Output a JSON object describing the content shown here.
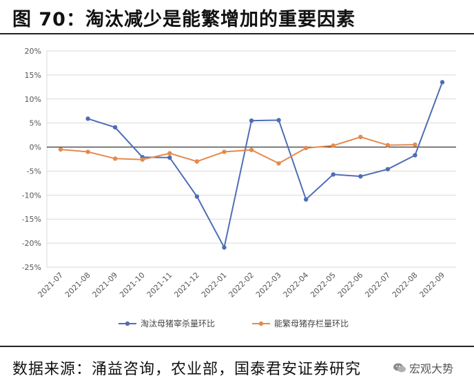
{
  "header": {
    "title": "图 70：淘汰减少是能繁增加的重要因素"
  },
  "footer": {
    "source": "数据来源：涌益咨询，农业部，国泰君安证券研究",
    "watermark": "宏观大势"
  },
  "chart_data": {
    "type": "line",
    "categories": [
      "2021-07",
      "2021-08",
      "2021-09",
      "2021-10",
      "2021-11",
      "2021-12",
      "2022-01",
      "2022-02",
      "2022-03",
      "2022-04",
      "2022-05",
      "2022-06",
      "2022-07",
      "2022-08",
      "2022-09"
    ],
    "series": [
      {
        "name": "淘汰母猪宰杀量环比",
        "color": "#4e6db4",
        "values": [
          null,
          5.9,
          4.1,
          -2.1,
          -2.2,
          -10.3,
          -20.9,
          5.5,
          5.6,
          -10.9,
          -5.7,
          -6.1,
          -4.6,
          -1.7,
          13.5
        ]
      },
      {
        "name": "能繁母猪存栏量环比",
        "color": "#e48a4d",
        "values": [
          -0.5,
          -1.0,
          -2.4,
          -2.6,
          -1.3,
          -3.0,
          -1.0,
          -0.6,
          -3.4,
          -0.2,
          0.3,
          2.1,
          0.4,
          0.5,
          null
        ]
      }
    ],
    "ylim": [
      -25,
      20
    ],
    "yticks": [
      "20%",
      "15%",
      "10%",
      "5%",
      "0%",
      "-5%",
      "-10%",
      "-15%",
      "-20%",
      "-25%"
    ],
    "grid": true,
    "legend": "bottom"
  }
}
